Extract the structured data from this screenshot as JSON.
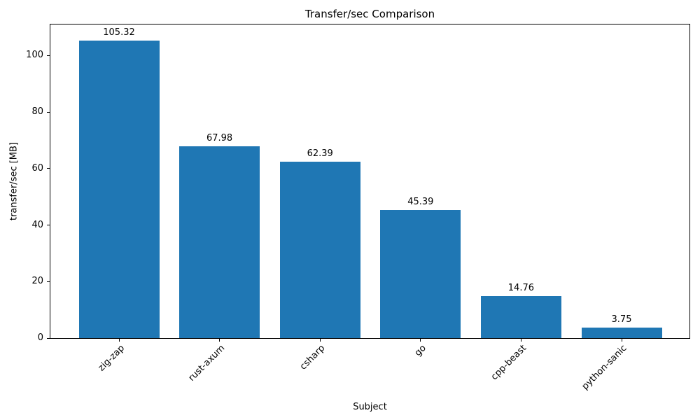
{
  "chart_data": {
    "type": "bar",
    "title": "Transfer/sec Comparison",
    "xlabel": "Subject",
    "ylabel": "transfer/sec [MB]",
    "categories": [
      "zig-zap",
      "rust-axum",
      "csharp",
      "go",
      "cpp-beast",
      "python-sanic"
    ],
    "values": [
      105.32,
      67.98,
      62.39,
      45.39,
      14.76,
      3.75
    ],
    "bar_labels": [
      "105.32",
      "67.98",
      "62.39",
      "45.39",
      "14.76",
      "3.75"
    ],
    "ylim": [
      0,
      111
    ],
    "yticks": [
      0,
      20,
      40,
      60,
      80,
      100
    ],
    "bar_color": "#1f77b4",
    "axis_color": "#000000",
    "grid": false,
    "legend_position": "none",
    "x_tick_rotation_deg": 45
  }
}
